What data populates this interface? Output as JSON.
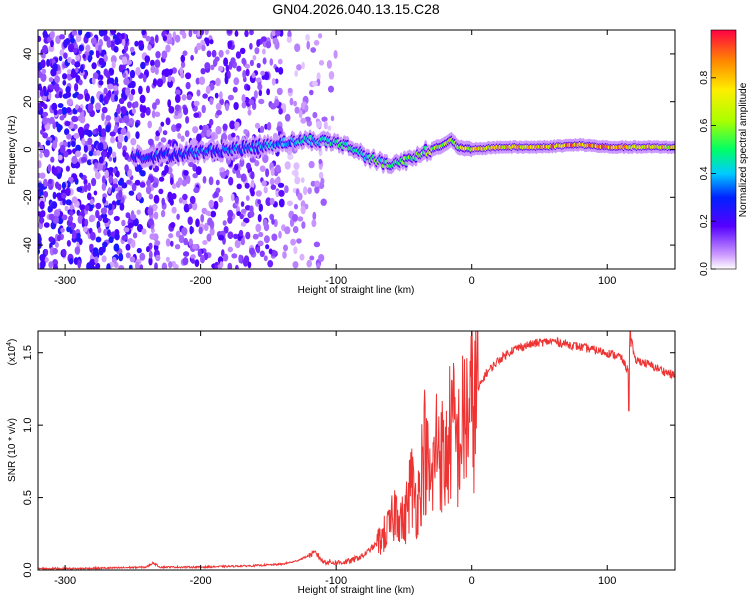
{
  "title": "GN04.2026.040.13.15.C28",
  "chart_data": [
    {
      "type": "heatmap",
      "xlabel": "Height of straight line (km)",
      "ylabel": "Frequency (Hz)",
      "xlim": [
        -320,
        150
      ],
      "ylim": [
        -50,
        50
      ],
      "xticks": [
        -300,
        -200,
        -100,
        0,
        100
      ],
      "yticks": [
        -40,
        -20,
        0,
        20,
        40
      ],
      "colorbar": {
        "label": "Normalized spectral amplitude",
        "range": [
          0,
          1
        ],
        "ticks": [
          "0.0",
          "0.2",
          "0.4",
          "0.6",
          "0.8"
        ],
        "colors": [
          "#ffffff",
          "#9966ff",
          "#3300ff",
          "#00ccff",
          "#00ff44",
          "#ffff00",
          "#ff8800",
          "#ff0033"
        ]
      },
      "ridge": {
        "x": [
          -250,
          -240,
          -220,
          -200,
          -180,
          -160,
          -140,
          -120,
          -100,
          -90,
          -80,
          -70,
          -60,
          -50,
          -40,
          -30,
          -20,
          -15,
          -10,
          0,
          20,
          50,
          80,
          100,
          120,
          150
        ],
        "freq": [
          -2,
          -3,
          -2,
          -1,
          0,
          1,
          3,
          4,
          3,
          1,
          -2,
          -5,
          -6,
          -5,
          -2,
          0,
          2,
          4,
          1,
          0,
          1,
          1,
          2,
          1,
          1,
          1
        ],
        "amplitude": [
          0.3,
          0.35,
          0.3,
          0.35,
          0.35,
          0.4,
          0.4,
          0.45,
          0.5,
          0.5,
          0.5,
          0.55,
          0.55,
          0.6,
          0.6,
          0.65,
          0.65,
          0.7,
          0.7,
          0.75,
          0.8,
          0.85,
          0.9,
          0.85,
          0.8,
          0.75
        ]
      }
    },
    {
      "type": "line",
      "xlabel": "Height of straight line (km)",
      "ylabel": "SNR (10 * v/v)",
      "y_multiplier": "(x10",
      "y_multiplier_exp": "4",
      "y_multiplier_close": ")",
      "xlim": [
        -320,
        150
      ],
      "ylim": [
        0,
        1.65
      ],
      "xticks": [
        -300,
        -200,
        -100,
        0,
        100
      ],
      "yticks": [
        "0.0",
        "0.5",
        "1.0",
        "1.5"
      ],
      "color": "#ee3333",
      "series": [
        {
          "name": "SNR",
          "x": [
            -320,
            -290,
            -260,
            -240,
            -235,
            -230,
            -200,
            -180,
            -160,
            -140,
            -130,
            -120,
            -115,
            -110,
            -100,
            -90,
            -80,
            -70,
            -60,
            -55,
            -50,
            -45,
            -40,
            -35,
            -30,
            -25,
            -20,
            -15,
            -10,
            -5,
            0,
            5,
            10,
            20,
            30,
            40,
            50,
            60,
            70,
            80,
            90,
            100,
            110,
            115,
            118,
            120,
            125,
            130,
            140,
            150
          ],
          "y": [
            0.01,
            0.01,
            0.015,
            0.02,
            0.05,
            0.02,
            0.02,
            0.025,
            0.03,
            0.04,
            0.06,
            0.1,
            0.12,
            0.06,
            0.05,
            0.06,
            0.1,
            0.18,
            0.3,
            0.45,
            0.3,
            0.6,
            0.45,
            0.85,
            0.55,
            0.95,
            0.7,
            1.0,
            0.85,
            1.05,
            1.1,
            1.25,
            1.35,
            1.45,
            1.52,
            1.55,
            1.57,
            1.58,
            1.56,
            1.54,
            1.52,
            1.5,
            1.47,
            1.38,
            1.6,
            1.45,
            1.44,
            1.42,
            1.38,
            1.34
          ]
        }
      ]
    }
  ]
}
